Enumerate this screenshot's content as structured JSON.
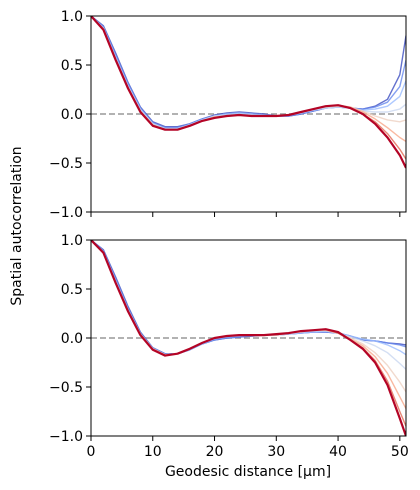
{
  "figure": {
    "ylabel": "Spatial autocorrelation",
    "xlabel": "Geodesic distance [μm]"
  },
  "chart_data": [
    {
      "type": "line",
      "panel": "top",
      "xlim": [
        0,
        51
      ],
      "ylim": [
        -1.0,
        1.0
      ],
      "xticks": [
        0,
        10,
        20,
        30,
        40,
        50
      ],
      "yticks": [
        -1.0,
        -0.5,
        0.0,
        0.5,
        1.0
      ],
      "ytick_labels": [
        "−1.0",
        "−0.5",
        "0.0",
        "0.5",
        "1.0"
      ],
      "show_xtick_labels": false,
      "reference_line": {
        "y": 0,
        "style": "dashed",
        "color": "#999999"
      },
      "colormap": "coolwarm",
      "grid": false,
      "x": [
        0,
        2,
        4,
        6,
        8,
        10,
        12,
        14,
        16,
        18,
        20,
        22,
        24,
        26,
        28,
        30,
        32,
        34,
        36,
        38,
        40,
        42,
        44,
        46,
        48,
        50,
        51
      ],
      "series": [
        {
          "color": "#3b4cc0",
          "values": [
            1.0,
            0.9,
            0.62,
            0.32,
            0.07,
            -0.08,
            -0.13,
            -0.13,
            -0.1,
            -0.05,
            -0.01,
            0.01,
            0.02,
            0.01,
            0.0,
            -0.02,
            -0.02,
            0.0,
            0.03,
            0.06,
            0.07,
            0.06,
            0.05,
            0.08,
            0.15,
            0.4,
            0.8
          ]
        },
        {
          "color": "#6788ee",
          "values": [
            1.0,
            0.89,
            0.6,
            0.31,
            0.06,
            -0.09,
            -0.14,
            -0.14,
            -0.1,
            -0.05,
            -0.02,
            0.0,
            0.01,
            0.0,
            -0.01,
            -0.02,
            -0.02,
            0.0,
            0.03,
            0.06,
            0.07,
            0.06,
            0.05,
            0.07,
            0.12,
            0.28,
            0.55
          ]
        },
        {
          "color": "#9abbff",
          "values": [
            1.0,
            0.88,
            0.58,
            0.29,
            0.05,
            -0.1,
            -0.15,
            -0.15,
            -0.11,
            -0.06,
            -0.02,
            0.0,
            0.01,
            0.0,
            -0.01,
            -0.02,
            -0.01,
            0.01,
            0.04,
            0.06,
            0.07,
            0.06,
            0.04,
            0.05,
            0.08,
            0.18,
            0.34
          ]
        },
        {
          "color": "#c9d7f0",
          "values": [
            1.0,
            0.87,
            0.57,
            0.28,
            0.04,
            -0.1,
            -0.15,
            -0.15,
            -0.11,
            -0.06,
            -0.02,
            -0.01,
            0.0,
            -0.01,
            -0.02,
            -0.02,
            -0.01,
            0.01,
            0.04,
            0.06,
            0.07,
            0.06,
            0.03,
            0.02,
            0.02,
            0.05,
            0.1
          ]
        },
        {
          "color": "#edd1c2",
          "values": [
            1.0,
            0.87,
            0.56,
            0.27,
            0.03,
            -0.11,
            -0.16,
            -0.16,
            -0.12,
            -0.07,
            -0.03,
            -0.02,
            -0.01,
            -0.02,
            -0.02,
            -0.02,
            -0.01,
            0.02,
            0.05,
            0.07,
            0.08,
            0.07,
            0.03,
            -0.02,
            -0.06,
            -0.08,
            -0.06
          ]
        },
        {
          "color": "#f7a889",
          "values": [
            1.0,
            0.87,
            0.56,
            0.27,
            0.03,
            -0.11,
            -0.16,
            -0.16,
            -0.12,
            -0.07,
            -0.03,
            -0.02,
            -0.01,
            -0.02,
            -0.02,
            -0.02,
            -0.01,
            0.02,
            0.05,
            0.08,
            0.09,
            0.07,
            0.02,
            -0.05,
            -0.14,
            -0.24,
            -0.28
          ]
        },
        {
          "color": "#e26952",
          "values": [
            1.0,
            0.86,
            0.55,
            0.26,
            0.02,
            -0.12,
            -0.16,
            -0.16,
            -0.12,
            -0.07,
            -0.04,
            -0.02,
            -0.01,
            -0.02,
            -0.02,
            -0.02,
            -0.01,
            0.02,
            0.05,
            0.08,
            0.09,
            0.06,
            0.0,
            -0.08,
            -0.2,
            -0.36,
            -0.46
          ]
        },
        {
          "color": "#b40426",
          "values": [
            1.0,
            0.86,
            0.55,
            0.26,
            0.02,
            -0.12,
            -0.16,
            -0.16,
            -0.12,
            -0.07,
            -0.04,
            -0.02,
            -0.01,
            -0.02,
            -0.02,
            -0.02,
            -0.01,
            0.02,
            0.05,
            0.08,
            0.09,
            0.06,
            0.0,
            -0.1,
            -0.24,
            -0.42,
            -0.55
          ]
        }
      ]
    },
    {
      "type": "line",
      "panel": "bottom",
      "xlim": [
        0,
        51
      ],
      "ylim": [
        -1.0,
        1.0
      ],
      "xticks": [
        0,
        10,
        20,
        30,
        40,
        50
      ],
      "yticks": [
        -1.0,
        -0.5,
        0.0,
        0.5,
        1.0
      ],
      "ytick_labels": [
        "−1.0",
        "−0.5",
        "0.0",
        "0.5",
        "1.0"
      ],
      "show_xtick_labels": true,
      "reference_line": {
        "y": 0,
        "style": "dashed",
        "color": "#999999"
      },
      "colormap": "coolwarm",
      "grid": false,
      "x": [
        0,
        2,
        4,
        6,
        8,
        10,
        12,
        14,
        16,
        18,
        20,
        22,
        24,
        26,
        28,
        30,
        32,
        34,
        36,
        38,
        40,
        42,
        44,
        46,
        48,
        50,
        51
      ],
      "series": [
        {
          "color": "#3b4cc0",
          "values": [
            1.0,
            0.9,
            0.62,
            0.32,
            0.06,
            -0.1,
            -0.16,
            -0.16,
            -0.12,
            -0.06,
            -0.02,
            0.0,
            0.01,
            0.02,
            0.03,
            0.03,
            0.04,
            0.05,
            0.06,
            0.06,
            0.05,
            0.02,
            -0.02,
            -0.03,
            -0.05,
            -0.06,
            -0.07
          ]
        },
        {
          "color": "#6788ee",
          "values": [
            1.0,
            0.89,
            0.6,
            0.3,
            0.05,
            -0.1,
            -0.16,
            -0.16,
            -0.12,
            -0.06,
            -0.02,
            0.0,
            0.01,
            0.02,
            0.03,
            0.03,
            0.04,
            0.05,
            0.06,
            0.06,
            0.05,
            0.02,
            -0.02,
            -0.03,
            -0.05,
            -0.07,
            -0.09
          ]
        },
        {
          "color": "#9abbff",
          "values": [
            1.0,
            0.88,
            0.58,
            0.29,
            0.04,
            -0.11,
            -0.17,
            -0.16,
            -0.12,
            -0.06,
            -0.01,
            0.01,
            0.02,
            0.03,
            0.03,
            0.03,
            0.04,
            0.05,
            0.06,
            0.07,
            0.05,
            0.02,
            -0.01,
            -0.03,
            -0.07,
            -0.13,
            -0.17
          ]
        },
        {
          "color": "#c9d7f0",
          "values": [
            1.0,
            0.88,
            0.58,
            0.28,
            0.04,
            -0.11,
            -0.17,
            -0.16,
            -0.11,
            -0.05,
            0.0,
            0.02,
            0.03,
            0.03,
            0.03,
            0.03,
            0.04,
            0.06,
            0.07,
            0.07,
            0.05,
            0.01,
            -0.03,
            -0.08,
            -0.15,
            -0.26,
            -0.32
          ]
        },
        {
          "color": "#edd1c2",
          "values": [
            1.0,
            0.87,
            0.57,
            0.28,
            0.04,
            -0.11,
            -0.17,
            -0.16,
            -0.11,
            -0.05,
            0.0,
            0.02,
            0.03,
            0.03,
            0.03,
            0.03,
            0.05,
            0.06,
            0.08,
            0.08,
            0.05,
            0.0,
            -0.06,
            -0.15,
            -0.28,
            -0.45,
            -0.55
          ]
        },
        {
          "color": "#f7a889",
          "values": [
            1.0,
            0.87,
            0.57,
            0.28,
            0.04,
            -0.11,
            -0.17,
            -0.16,
            -0.11,
            -0.05,
            0.0,
            0.02,
            0.03,
            0.03,
            0.03,
            0.03,
            0.05,
            0.07,
            0.08,
            0.08,
            0.05,
            -0.01,
            -0.08,
            -0.19,
            -0.36,
            -0.6,
            -0.72
          ]
        },
        {
          "color": "#e26952",
          "values": [
            1.0,
            0.87,
            0.56,
            0.27,
            0.03,
            -0.12,
            -0.18,
            -0.16,
            -0.11,
            -0.05,
            0.0,
            0.02,
            0.03,
            0.03,
            0.03,
            0.04,
            0.05,
            0.07,
            0.08,
            0.09,
            0.05,
            -0.02,
            -0.1,
            -0.23,
            -0.44,
            -0.75,
            -0.9
          ]
        },
        {
          "color": "#b40426",
          "values": [
            1.0,
            0.87,
            0.56,
            0.27,
            0.03,
            -0.12,
            -0.18,
            -0.16,
            -0.11,
            -0.05,
            0.0,
            0.02,
            0.03,
            0.03,
            0.03,
            0.04,
            0.05,
            0.07,
            0.08,
            0.09,
            0.06,
            -0.02,
            -0.11,
            -0.25,
            -0.48,
            -0.82,
            -1.0
          ]
        }
      ]
    }
  ]
}
